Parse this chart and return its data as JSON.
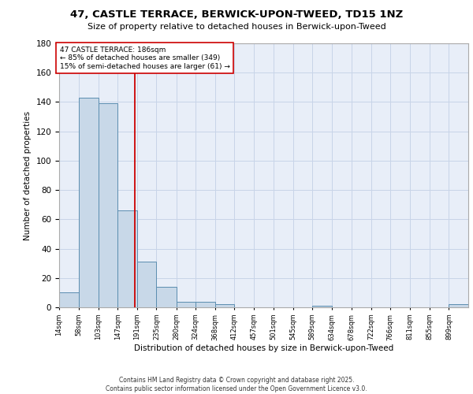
{
  "title_line1": "47, CASTLE TERRACE, BERWICK-UPON-TWEED, TD15 1NZ",
  "title_line2": "Size of property relative to detached houses in Berwick-upon-Tweed",
  "xlabel": "Distribution of detached houses by size in Berwick-upon-Tweed",
  "ylabel": "Number of detached properties",
  "bin_labels": [
    "14sqm",
    "58sqm",
    "103sqm",
    "147sqm",
    "191sqm",
    "235sqm",
    "280sqm",
    "324sqm",
    "368sqm",
    "412sqm",
    "457sqm",
    "501sqm",
    "545sqm",
    "589sqm",
    "634sqm",
    "678sqm",
    "722sqm",
    "766sqm",
    "811sqm",
    "855sqm",
    "899sqm"
  ],
  "bar_heights": [
    10,
    143,
    139,
    66,
    31,
    14,
    4,
    4,
    2,
    0,
    0,
    0,
    0,
    1,
    0,
    0,
    0,
    0,
    0,
    0,
    2
  ],
  "bar_color": "#c8d8e8",
  "bar_edge_color": "#5b8db0",
  "property_line_x": 186,
  "property_line_color": "#cc0000",
  "annotation_text": "47 CASTLE TERRACE: 186sqm\n← 85% of detached houses are smaller (349)\n15% of semi-detached houses are larger (61) →",
  "annotation_box_color": "#ffffff",
  "annotation_box_edge": "#cc0000",
  "ylim": [
    0,
    180
  ],
  "yticks": [
    0,
    20,
    40,
    60,
    80,
    100,
    120,
    140,
    160,
    180
  ],
  "grid_color": "#c8d4e8",
  "background_color": "#e8eef8",
  "footer_text": "Contains HM Land Registry data © Crown copyright and database right 2025.\nContains public sector information licensed under the Open Government Licence v3.0.",
  "bin_edges": [
    14,
    58,
    103,
    147,
    191,
    235,
    280,
    324,
    368,
    412,
    457,
    501,
    545,
    589,
    634,
    678,
    722,
    766,
    811,
    855,
    899,
    943
  ]
}
